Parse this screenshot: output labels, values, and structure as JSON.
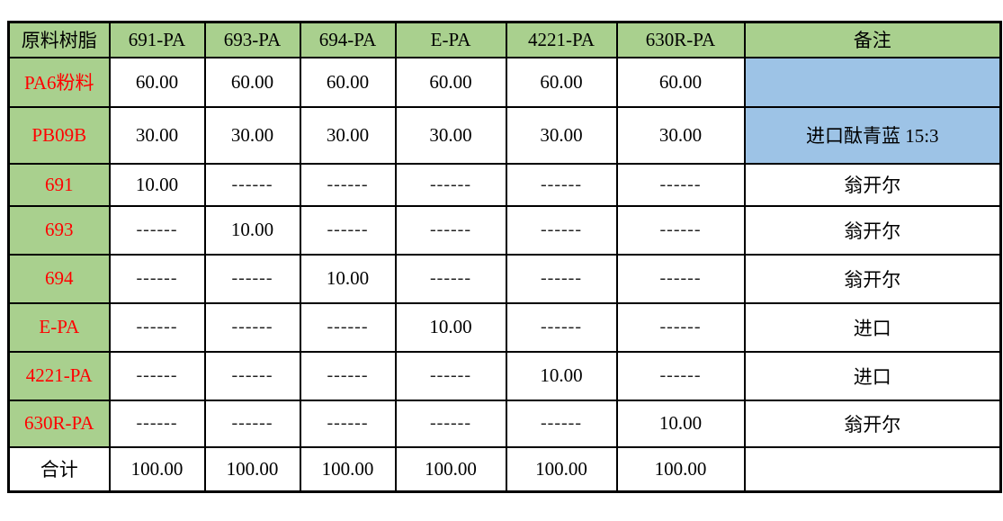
{
  "colors": {
    "header_green": "#a9d08e",
    "remark_blue": "#9dc3e6",
    "label_red": "#ff0000",
    "grid_border": "#000000"
  },
  "table": {
    "columns": [
      "原料树脂",
      "691-PA",
      "693-PA",
      "694-PA",
      "E-PA",
      "4221-PA",
      "630R-PA",
      "备注"
    ],
    "rows": [
      {
        "label": "PA6粉料",
        "values": [
          "60.00",
          "60.00",
          "60.00",
          "60.00",
          "60.00",
          "60.00"
        ],
        "remark": "",
        "remark_blue": true
      },
      {
        "label": "PB09B",
        "values": [
          "30.00",
          "30.00",
          "30.00",
          "30.00",
          "30.00",
          "30.00"
        ],
        "remark": "进口酞青蓝 15:3",
        "remark_blue": true
      },
      {
        "label": "691",
        "values": [
          "10.00",
          "------",
          "------",
          "------",
          "------",
          "------"
        ],
        "remark": "翁开尔"
      },
      {
        "label": "693",
        "values": [
          "------",
          "10.00",
          "------",
          "------",
          "------",
          "------"
        ],
        "remark": "翁开尔"
      },
      {
        "label": "694",
        "values": [
          "------",
          "------",
          "10.00",
          "------",
          "------",
          "------"
        ],
        "remark": "翁开尔"
      },
      {
        "label": "E-PA",
        "values": [
          "------",
          "------",
          "------",
          "10.00",
          "------",
          "------"
        ],
        "remark": "进口"
      },
      {
        "label": "4221-PA",
        "values": [
          "------",
          "------",
          "------",
          "------",
          "10.00",
          "------"
        ],
        "remark": "进口"
      },
      {
        "label": "630R-PA",
        "values": [
          "------",
          "------",
          "------",
          "------",
          "------",
          "10.00"
        ],
        "remark": "翁开尔"
      },
      {
        "label": "合计",
        "values": [
          "100.00",
          "100.00",
          "100.00",
          "100.00",
          "100.00",
          "100.00"
        ],
        "remark": "",
        "total": true
      }
    ]
  }
}
